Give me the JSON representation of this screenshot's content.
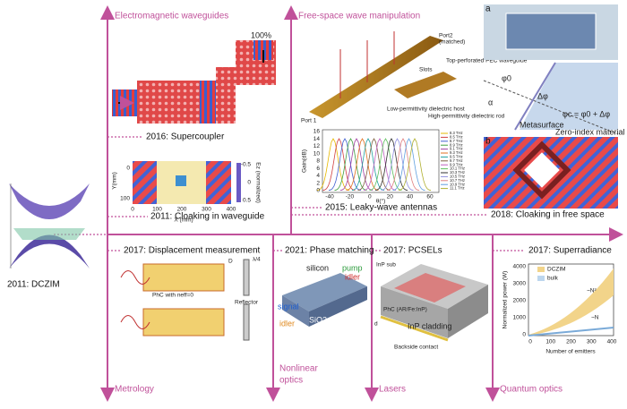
{
  "branches": {
    "waveguides": "Electromagnetic waveguides",
    "free_space": "Free-space wave manipulation",
    "metrology": "Metrology",
    "nonlinear": [
      "Nonlinear",
      "optics"
    ],
    "lasers": "Lasers",
    "quantum": "Quantum optics"
  },
  "milestones": {
    "supercoupler": "2016: Supercoupler",
    "cloak_waveguide": "2011: Cloaking in waveguide",
    "leaky_wave": "2015: Leaky-wave antennas",
    "cloak_free_space": "2018: Cloaking in free space",
    "dczim": "2011: DCZIM",
    "displacement": "2017: Displacement measurement",
    "phase_matching": "2021: Phase matching",
    "pcsels": "2017: PCSELs",
    "superradiance": "2017: Superradiance"
  },
  "supercoupler": {
    "transmission": "100%"
  },
  "cloak": {
    "ylabel": "Y(mm)",
    "xlabel": "X (mm)",
    "yticks": [
      100,
      0
    ],
    "xticks": [
      0,
      100,
      200,
      300,
      400
    ],
    "colorbar_label": "Ez (normalized)",
    "colorbar_ticks": [
      0.5,
      0,
      -0.5
    ]
  },
  "antenna": {
    "port2": "Port2",
    "port2_note": "(matched)",
    "port1": "Port 1",
    "slots": "Slots",
    "top": "Top-perforated PEC waveguide",
    "low": "Low-permittivity dielectric host",
    "high": "High-permittivity dielectric rod",
    "ylabel": "Gain(dB)",
    "xlabel": "θ(°)",
    "yticks": [
      0,
      2,
      4,
      6,
      8,
      10,
      12,
      14,
      16
    ],
    "xticks": [
      -40,
      -20,
      0,
      20,
      40,
      60
    ],
    "legend": [
      "8.3 THz",
      "8.5 THz",
      "8.7 THz",
      "8.9 THz",
      "9.1 THz",
      "9.3 THz",
      "9.5 THz",
      "9.7 THz",
      "9.9 THz",
      "10.1 THz",
      "10.3 THz",
      "10.5 THz",
      "10.7 THz",
      "10.9 THz",
      "11.1 THz"
    ]
  },
  "free_space": {
    "panel_a": "a",
    "panel_b": "b",
    "phi0": "φ0",
    "alpha": "α",
    "dphi": "Δφ",
    "phic": "φc = φ0 + Δφ",
    "metasurface": "Metasurface",
    "zim": "Zero-index material"
  },
  "displacement": {
    "d": "D",
    "quarter": "λ/4",
    "reflector": "Reflector",
    "phc": "PhC with neff=0"
  },
  "phase": {
    "silicon": "silicon",
    "pump": "pump",
    "signal": "signal",
    "idler_left": "idler",
    "idler_right": "idler",
    "sio2": "SiO2"
  },
  "pcsel": {
    "sub": "InP sub",
    "phc": "PhC (AR/Fe:InP)",
    "cladding": "InP cladding",
    "contact": "Backside contact",
    "d": "d"
  },
  "superradiance": {
    "ylabel": "Normalized power (W)",
    "xlabel": "Number of emitters",
    "yticks": [
      0,
      1000,
      2000,
      3000,
      4000
    ],
    "xticks": [
      0,
      100,
      200,
      300,
      400
    ],
    "legend": [
      "DCZIM",
      "bulk"
    ],
    "n2": "~N²",
    "n": "~N"
  }
}
